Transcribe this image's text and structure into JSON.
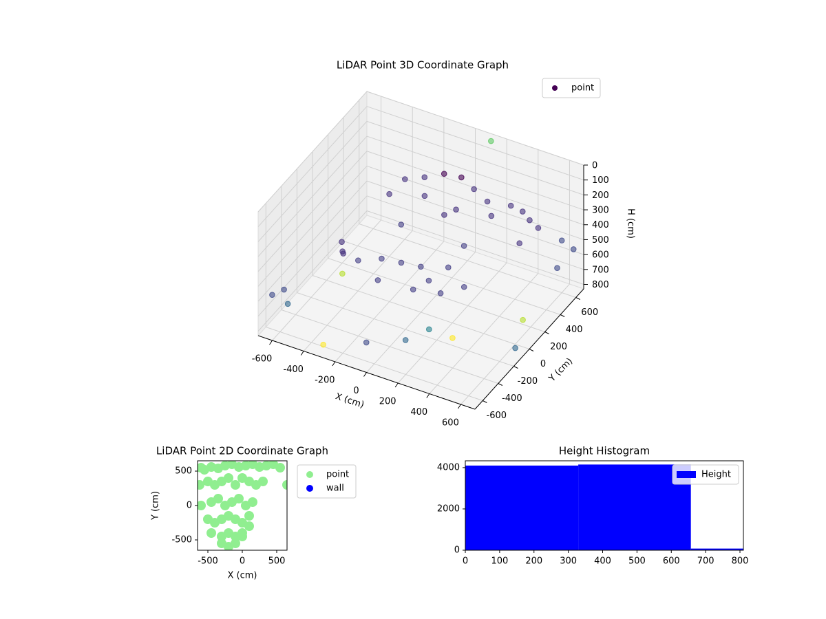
{
  "chart_data": [
    {
      "type": "scatter3d",
      "title": "LiDAR Point 3D Coordinate Graph",
      "xlabel": "X (cm)",
      "ylabel": "Y (cm)",
      "zlabel": "H (cm)",
      "xlim": [
        -690,
        690
      ],
      "ylim": [
        -700,
        700
      ],
      "zlim": [
        830,
        0
      ],
      "xticks": [
        -600,
        -400,
        -200,
        0,
        200,
        400,
        600
      ],
      "yticks": [
        -600,
        -400,
        -200,
        0,
        200,
        400,
        600
      ],
      "zticks": [
        0,
        100,
        200,
        300,
        400,
        500,
        600,
        700,
        800
      ],
      "legend": "upper right",
      "series": [
        {
          "name": "point",
          "color": "#440154",
          "x": [
            -250,
            -150,
            -50,
            50,
            150,
            250,
            -300,
            -100,
            100,
            300,
            -350,
            -250,
            -150,
            -50,
            50,
            150,
            250,
            -200,
            0,
            100,
            -400,
            -380,
            -420,
            350,
            400,
            420,
            450,
            380,
            600,
            650,
            620,
            -650,
            -600,
            -550,
            200,
            100,
            -100,
            0,
            200,
            -200,
            300,
            -500,
            550,
            100,
            650,
            -300
          ],
          "y": [
            300,
            350,
            400,
            420,
            380,
            350,
            200,
            250,
            250,
            300,
            -100,
            0,
            50,
            100,
            0,
            -50,
            50,
            -150,
            -100,
            150,
            -200,
            -250,
            -150,
            450,
            500,
            550,
            600,
            500,
            600,
            650,
            500,
            -600,
            -500,
            -650,
            -300,
            -400,
            -500,
            300,
            150,
            150,
            -200,
            0,
            200,
            700,
            -100,
            -650
          ],
          "z": [
            200,
            180,
            150,
            150,
            170,
            200,
            260,
            230,
            250,
            250,
            550,
            560,
            580,
            600,
            600,
            620,
            600,
            600,
            620,
            580,
            450,
            350,
            500,
            250,
            300,
            380,
            450,
            520,
            480,
            550,
            600,
            600,
            700,
            500,
            700,
            750,
            780,
            350,
            400,
            400,
            780,
            750,
            800,
            50,
            780,
            780
          ],
          "colors": [
            "#46327e",
            "#46327e",
            "#440154",
            "#440154",
            "#46327e",
            "#46327e",
            "#46327e",
            "#46327e",
            "#46327e",
            "#46327e",
            "#433e85",
            "#433e85",
            "#433e85",
            "#433e85",
            "#433e85",
            "#433e85",
            "#433e85",
            "#433e85",
            "#433e85",
            "#433e85",
            "#46327e",
            "#46327e",
            "#46327e",
            "#46327e",
            "#46327e",
            "#46327e",
            "#46327e",
            "#46327e",
            "#3e4a89",
            "#3e4a89",
            "#3e4a89",
            "#3e4a89",
            "#31688e",
            "#3e4a89",
            "#26828e",
            "#31688e",
            "#3e4a89",
            "#46327e",
            "#433e85",
            "#433e85",
            "#fde725",
            "#b5de2b",
            "#b5de2b",
            "#5ec962",
            "#31688e",
            "#fde725"
          ]
        }
      ]
    },
    {
      "type": "scatter",
      "title": "LiDAR Point 2D Coordinate Graph",
      "xlabel": "X (cm)",
      "ylabel": "Y (cm)",
      "xlim": [
        -650,
        650
      ],
      "ylim": [
        -650,
        650
      ],
      "xticks": [
        -500,
        0,
        500
      ],
      "yticks": [
        -500,
        0,
        500
      ],
      "legend": "upper right outside",
      "series": [
        {
          "name": "point",
          "color": "#90ee90",
          "x": [
            -600,
            -550,
            -450,
            -350,
            -250,
            -150,
            -50,
            50,
            150,
            250,
            350,
            450,
            550,
            -620,
            -500,
            -400,
            -300,
            -200,
            -100,
            0,
            100,
            200,
            300,
            -600,
            -450,
            -350,
            -250,
            -150,
            -50,
            50,
            150,
            -500,
            -400,
            -300,
            -200,
            -100,
            0,
            100,
            -450,
            -300,
            -200,
            -100,
            0,
            -300,
            -200,
            -100,
            0,
            100,
            650
          ],
          "y": [
            550,
            520,
            560,
            540,
            580,
            600,
            560,
            580,
            600,
            560,
            580,
            600,
            550,
            300,
            350,
            300,
            350,
            400,
            300,
            400,
            350,
            300,
            350,
            0,
            50,
            100,
            0,
            50,
            100,
            0,
            50,
            -200,
            -250,
            -200,
            -150,
            -200,
            -250,
            -150,
            -400,
            -450,
            -400,
            -450,
            -400,
            -550,
            -600,
            -550,
            -450,
            -300,
            300
          ]
        },
        {
          "name": "wall",
          "color": "#0000ff",
          "x": [],
          "y": []
        }
      ]
    },
    {
      "type": "histogram",
      "title": "Height Histogram",
      "bins": [
        0,
        329,
        657,
        810
      ],
      "values": [
        4100,
        4150,
        80
      ],
      "xlim": [
        0,
        810
      ],
      "ylim": [
        0,
        4330
      ],
      "xticks": [
        0,
        100,
        200,
        300,
        400,
        500,
        600,
        700,
        800
      ],
      "yticks": [
        0,
        2000,
        4000
      ],
      "legend": "upper right",
      "series": [
        {
          "name": "Height",
          "color": "#0000ff"
        }
      ]
    }
  ]
}
